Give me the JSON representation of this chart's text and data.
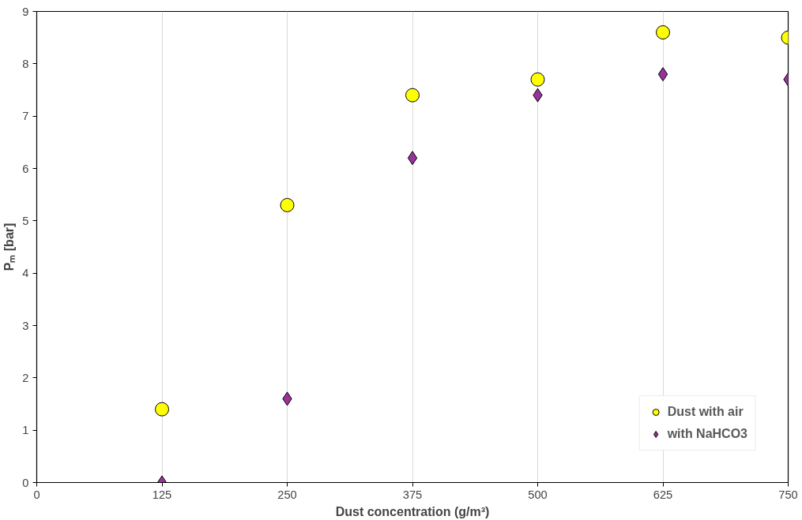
{
  "chart_data": {
    "type": "scatter",
    "xlabel": "Dust concentration (g/m³)",
    "ylabel": "Pₘ [bar]",
    "x": [
      125,
      250,
      375,
      500,
      625,
      750
    ],
    "series": [
      {
        "name": "Dust with air",
        "color": "#ffff00",
        "marker": "circle",
        "values": [
          1.4,
          5.3,
          7.4,
          7.7,
          8.6,
          8.5
        ]
      },
      {
        "name": "with NaHCO3",
        "color": "#993399",
        "marker": "diamond",
        "values": [
          0,
          1.6,
          6.2,
          7.4,
          7.8,
          7.7
        ]
      }
    ],
    "xlim": [
      0,
      750
    ],
    "xticks": [
      0,
      125,
      250,
      375,
      500,
      625,
      750
    ],
    "ylim": [
      0,
      9
    ],
    "yticks": [
      0,
      1,
      2,
      3,
      4,
      5,
      6,
      7,
      8,
      9
    ],
    "grid": "x",
    "legend": "bottom right"
  }
}
